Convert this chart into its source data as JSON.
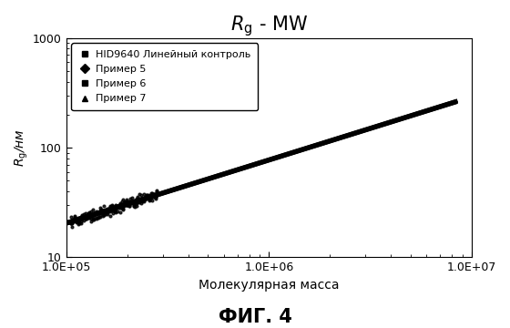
{
  "title": "$\\mathit{R}_{\\mathrm{g}}$ - MW",
  "xlabel": "Молекулярная масса",
  "ylabel": "$R_{\\mathrm{g}}$/нм",
  "fig_label": "ФИГ. 4",
  "xlim": [
    100000.0,
    10000000.0
  ],
  "ylim": [
    10,
    1000
  ],
  "background_color": "#ffffff",
  "legend_entries": [
    {
      "label": "HID9640 Линейный контроль",
      "marker": "s"
    },
    {
      "label": "Пример 5",
      "marker": "D"
    },
    {
      "label": "Пример 6",
      "marker": "s"
    },
    {
      "label": "Пример 7",
      "marker": "^"
    }
  ],
  "line_color": "#000000",
  "x_start": 100000.0,
  "x_end": 8500000.0,
  "y_start": 20.5,
  "y_end": 265,
  "title_fontsize": 15,
  "label_fontsize": 10,
  "tick_fontsize": 9,
  "figlabel_fontsize": 15
}
